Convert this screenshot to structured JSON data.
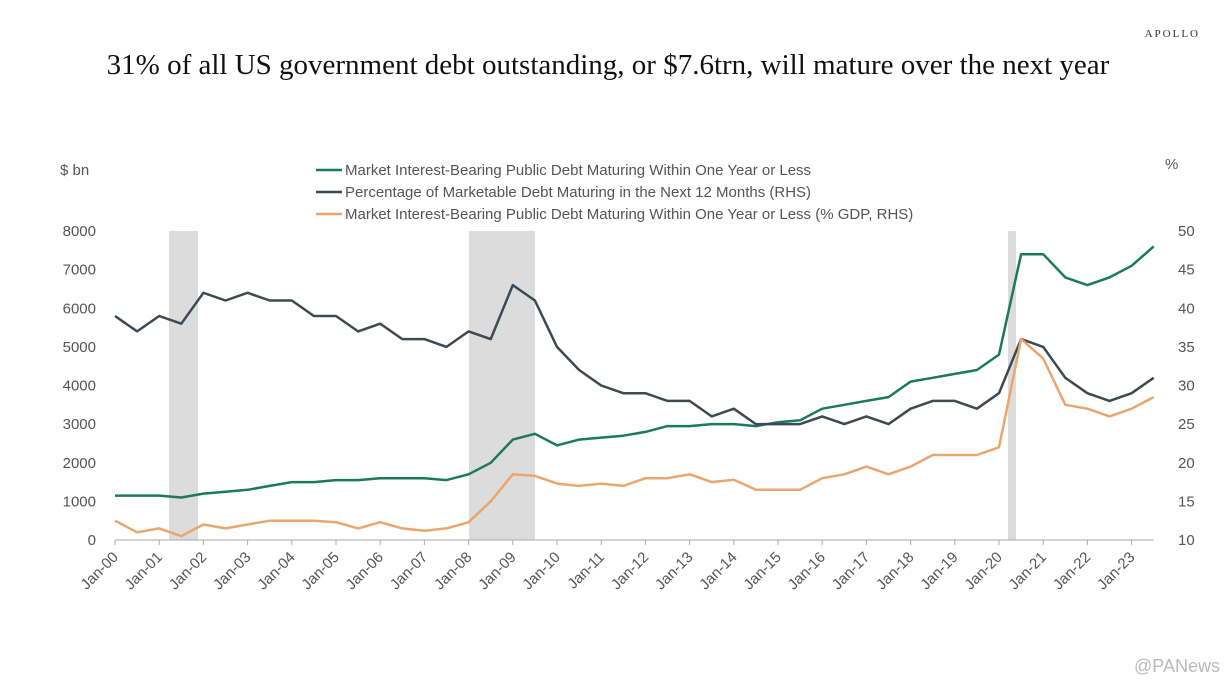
{
  "brand": "APOLLO",
  "watermark": "@PANews",
  "chart_data": {
    "type": "line",
    "title": "31% of all US government debt outstanding, or $7.6trn, will mature over the next year",
    "y_label": "$ bn",
    "y2_label": "%",
    "categories": [
      "Jan-00",
      null,
      "Jan-01",
      null,
      "Jan-02",
      null,
      "Jan-03",
      null,
      "Jan-04",
      null,
      "Jan-05",
      null,
      "Jan-06",
      null,
      "Jan-07",
      null,
      "Jan-08",
      null,
      "Jan-09",
      null,
      "Jan-10",
      null,
      "Jan-11",
      null,
      "Jan-12",
      null,
      "Jan-13",
      null,
      "Jan-14",
      null,
      "Jan-15",
      null,
      "Jan-16",
      null,
      "Jan-17",
      null,
      "Jan-18",
      null,
      "Jan-19",
      null,
      "Jan-20",
      null,
      "Jan-21",
      null,
      "Jan-22",
      null,
      "Jan-23",
      null
    ],
    "series": [
      {
        "name": "Market Interest-Bearing Public Debt Maturing Within One Year or Less",
        "color": "#1b7a5a",
        "axis": "y",
        "values": [
          1150,
          1150,
          1150,
          1100,
          1200,
          1250,
          1300,
          1400,
          1500,
          1500,
          1550,
          1550,
          1600,
          1600,
          1600,
          1550,
          1700,
          2000,
          2600,
          2750,
          2450,
          2600,
          2650,
          2700,
          2800,
          2950,
          2950,
          3000,
          3000,
          2950,
          3050,
          3100,
          3400,
          3500,
          3600,
          3700,
          4100,
          4200,
          4300,
          4400,
          4800,
          7400,
          7400,
          6800,
          6600,
          6800,
          7100,
          7600
        ]
      },
      {
        "name": "Percentage of Marketable Debt Maturing in the Next 12 Months (RHS)",
        "color": "#3d4a52",
        "axis": "y2",
        "values": [
          39,
          37,
          39,
          38,
          42,
          41,
          42,
          41,
          41,
          39,
          39,
          37,
          38,
          36,
          36,
          35,
          37,
          36,
          43,
          41,
          35,
          32,
          30,
          29,
          29,
          28,
          28,
          26,
          27,
          25,
          25,
          25,
          26,
          25,
          26,
          25,
          27,
          28,
          28,
          27,
          29,
          36,
          35,
          31,
          29,
          28,
          29,
          31
        ]
      },
      {
        "name": "Market Interest-Bearing Public Debt Maturing Within One Year or Less (% GDP, RHS)",
        "color": "#e9a66f",
        "axis": "y2",
        "values": [
          12.5,
          11,
          11.5,
          10.5,
          12,
          11.5,
          12,
          12.5,
          12.5,
          12.5,
          12.3,
          11.5,
          12.3,
          11.5,
          11.2,
          11.5,
          12.3,
          15,
          18.5,
          18.3,
          17.3,
          17,
          17.3,
          17,
          18,
          18,
          18.5,
          17.5,
          17.8,
          16.5,
          16.5,
          16.5,
          18,
          18.5,
          19.5,
          18.5,
          19.5,
          21,
          21,
          21,
          22,
          36,
          33.5,
          27.5,
          27,
          26,
          27,
          28.5
        ]
      }
    ],
    "ylim": [
      0,
      8000
    ],
    "yticks": [
      0,
      1000,
      2000,
      3000,
      4000,
      5000,
      6000,
      7000,
      8000
    ],
    "y2lim": [
      10,
      50
    ],
    "y2ticks": [
      10,
      15,
      20,
      25,
      30,
      35,
      40,
      45,
      50
    ],
    "legend": "top",
    "grid": false
  }
}
